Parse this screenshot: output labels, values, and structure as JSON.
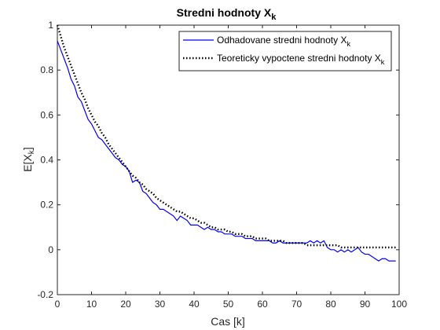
{
  "chart_data": {
    "type": "line",
    "title": {
      "text": "Stredni hodnoty X",
      "subscript": "k"
    },
    "xlabel": "Cas [k]",
    "ylabel": {
      "text": "E[X",
      "subscript": "k",
      "suffix": "]"
    },
    "xlim": [
      0,
      100
    ],
    "ylim": [
      -0.2,
      1
    ],
    "xticks": [
      0,
      10,
      20,
      30,
      40,
      50,
      60,
      70,
      80,
      90,
      100
    ],
    "yticks": [
      -0.2,
      0,
      0.2,
      0.4,
      0.6,
      0.8,
      1
    ],
    "ytick_labels": [
      "-0.2",
      "0",
      "0.2",
      "0.4",
      "0.6",
      "0.8",
      "1"
    ],
    "grid": false,
    "legend_position": "top-right",
    "series": [
      {
        "name": "Odhadovane stredni hodnoty X",
        "name_subscript": "k",
        "style": "solid",
        "color": "#0000ff",
        "x": [
          0,
          1,
          2,
          3,
          4,
          5,
          6,
          7,
          8,
          9,
          10,
          11,
          12,
          13,
          14,
          15,
          16,
          17,
          18,
          19,
          20,
          21,
          22,
          23,
          24,
          25,
          26,
          27,
          28,
          29,
          30,
          31,
          32,
          33,
          34,
          35,
          36,
          37,
          38,
          39,
          40,
          41,
          42,
          43,
          44,
          45,
          46,
          47,
          48,
          49,
          50,
          51,
          52,
          53,
          54,
          55,
          56,
          57,
          58,
          59,
          60,
          61,
          62,
          63,
          64,
          65,
          66,
          67,
          68,
          69,
          70,
          71,
          72,
          73,
          74,
          75,
          76,
          77,
          78,
          79,
          80,
          81,
          82,
          83,
          84,
          85,
          86,
          87,
          88,
          89,
          90,
          91,
          92,
          93,
          94,
          95,
          96,
          97,
          98,
          99
        ],
        "y": [
          0.93,
          0.89,
          0.85,
          0.81,
          0.76,
          0.73,
          0.68,
          0.66,
          0.62,
          0.58,
          0.56,
          0.53,
          0.5,
          0.49,
          0.47,
          0.45,
          0.43,
          0.41,
          0.4,
          0.38,
          0.37,
          0.35,
          0.3,
          0.31,
          0.3,
          0.26,
          0.25,
          0.23,
          0.21,
          0.2,
          0.18,
          0.18,
          0.17,
          0.16,
          0.15,
          0.13,
          0.15,
          0.14,
          0.13,
          0.11,
          0.11,
          0.11,
          0.1,
          0.09,
          0.1,
          0.09,
          0.09,
          0.08,
          0.08,
          0.07,
          0.07,
          0.07,
          0.06,
          0.06,
          0.06,
          0.05,
          0.05,
          0.05,
          0.04,
          0.04,
          0.04,
          0.04,
          0.04,
          0.03,
          0.03,
          0.04,
          0.03,
          0.03,
          0.03,
          0.03,
          0.03,
          0.03,
          0.03,
          0.03,
          0.04,
          0.03,
          0.04,
          0.03,
          0.04,
          0.01,
          0.0,
          0.0,
          -0.01,
          0.0,
          -0.01,
          0.0,
          -0.01,
          0.0,
          0.01,
          -0.01,
          -0.02,
          -0.02,
          -0.03,
          -0.04,
          -0.05,
          -0.04,
          -0.04,
          -0.05,
          -0.05,
          -0.05
        ]
      },
      {
        "name": "Teoreticky vypoctene stredni hodnoty X",
        "name_subscript": "k",
        "style": "dotted",
        "color": "#000000",
        "x": [
          0,
          1,
          2,
          3,
          4,
          5,
          6,
          7,
          8,
          9,
          10,
          11,
          12,
          13,
          14,
          15,
          16,
          17,
          18,
          19,
          20,
          21,
          22,
          23,
          24,
          25,
          26,
          27,
          28,
          29,
          30,
          31,
          32,
          33,
          34,
          35,
          36,
          37,
          38,
          39,
          40,
          41,
          42,
          43,
          44,
          45,
          46,
          47,
          48,
          49,
          50,
          51,
          52,
          53,
          54,
          55,
          56,
          57,
          58,
          59,
          60,
          61,
          62,
          63,
          64,
          65,
          66,
          67,
          68,
          69,
          70,
          71,
          72,
          73,
          74,
          75,
          76,
          77,
          78,
          79,
          80,
          81,
          82,
          83,
          84,
          85,
          86,
          87,
          88,
          89,
          90,
          91,
          92,
          93,
          94,
          95,
          96,
          97,
          98,
          99
        ],
        "y": [
          1.0,
          0.95,
          0.9,
          0.86,
          0.82,
          0.78,
          0.74,
          0.7,
          0.67,
          0.63,
          0.6,
          0.57,
          0.55,
          0.52,
          0.5,
          0.47,
          0.45,
          0.43,
          0.41,
          0.39,
          0.37,
          0.35,
          0.33,
          0.32,
          0.3,
          0.29,
          0.27,
          0.26,
          0.25,
          0.23,
          0.22,
          0.21,
          0.2,
          0.19,
          0.18,
          0.17,
          0.17,
          0.16,
          0.15,
          0.14,
          0.14,
          0.13,
          0.12,
          0.12,
          0.11,
          0.1,
          0.1,
          0.09,
          0.09,
          0.09,
          0.08,
          0.08,
          0.07,
          0.07,
          0.07,
          0.06,
          0.06,
          0.06,
          0.05,
          0.05,
          0.05,
          0.05,
          0.04,
          0.04,
          0.04,
          0.04,
          0.04,
          0.03,
          0.03,
          0.03,
          0.03,
          0.03,
          0.03,
          0.02,
          0.02,
          0.02,
          0.02,
          0.02,
          0.02,
          0.02,
          0.02,
          0.02,
          0.02,
          0.01,
          0.01,
          0.01,
          0.01,
          0.01,
          0.01,
          0.01,
          0.01,
          0.01,
          0.01,
          0.01,
          0.01,
          0.01,
          0.01,
          0.01,
          0.01,
          0.01
        ]
      }
    ]
  }
}
